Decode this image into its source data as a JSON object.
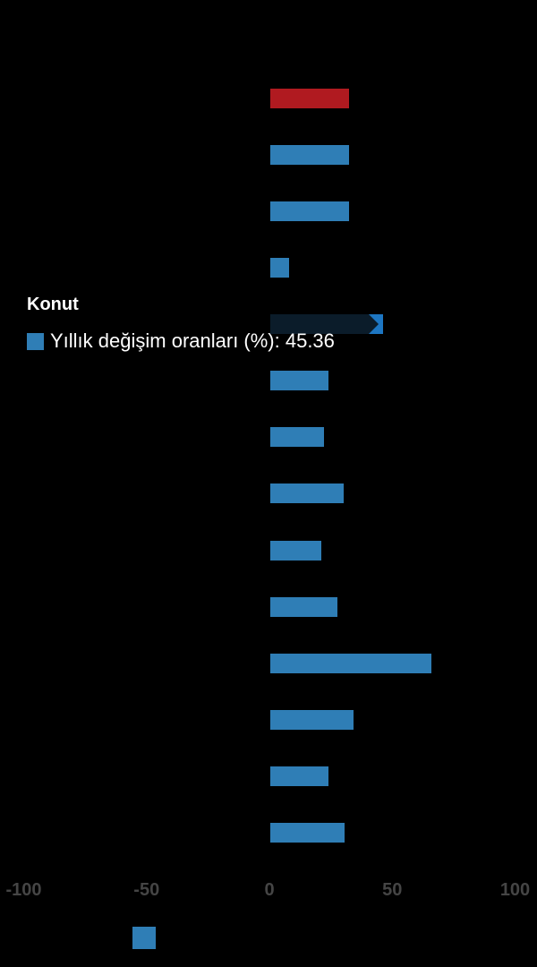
{
  "colors": {
    "background": "#000000",
    "bar_blue": "#2f7eb6",
    "bar_red": "#b01a20",
    "bar_hover_dark": "#0b1c2a",
    "chevron_blue": "#1d76c2",
    "axis_label": "#454545",
    "tooltip_text": "#ffffff"
  },
  "tooltip": {
    "title": "Konut",
    "series_label": "Yıllık değişim oranları (%)",
    "value": "45.36",
    "text": "Yıllık değişim oranları (%): 45.36",
    "marker_color": "#2f7eb6"
  },
  "legend": {
    "marker_color": "#2f7eb6"
  },
  "chart_data": {
    "type": "bar",
    "orientation": "horizontal",
    "title": "",
    "grid": false,
    "x_axis": {
      "range": [
        -108,
        108
      ],
      "ticks": [
        {
          "label": "-100",
          "value": -100
        },
        {
          "label": "-50",
          "value": -50
        },
        {
          "label": "0",
          "value": 0
        },
        {
          "label": "50",
          "value": 50
        },
        {
          "label": "100",
          "value": 100
        }
      ]
    },
    "series": [
      {
        "name": "Yıllık değişim oranları (%)",
        "points": [
          {
            "value": 32.1,
            "role": "red"
          },
          {
            "value": 32.0,
            "role": "blue"
          },
          {
            "value": 32.1,
            "role": "blue"
          },
          {
            "value": 7.5,
            "role": "blue"
          },
          {
            "value": 45.36,
            "role": "hovered",
            "category": "Konut"
          },
          {
            "value": 23.5,
            "role": "blue"
          },
          {
            "value": 22.0,
            "role": "blue"
          },
          {
            "value": 30.0,
            "role": "blue"
          },
          {
            "value": 20.8,
            "role": "blue"
          },
          {
            "value": 27.3,
            "role": "blue"
          },
          {
            "value": 65.4,
            "role": "blue"
          },
          {
            "value": 33.8,
            "role": "blue"
          },
          {
            "value": 23.7,
            "role": "blue"
          },
          {
            "value": 30.2,
            "role": "blue"
          }
        ]
      }
    ]
  }
}
